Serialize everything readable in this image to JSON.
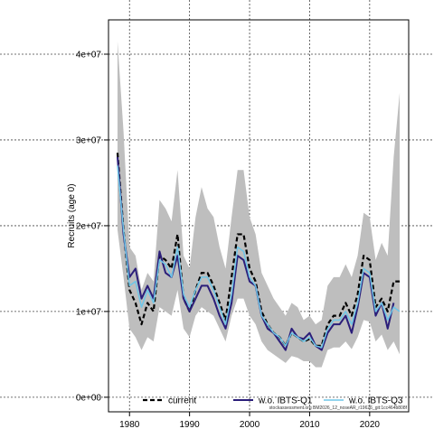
{
  "chart_data": {
    "type": "line",
    "title": "",
    "xlabel": "",
    "ylabel": "Recruits (age 0)",
    "xlim": [
      1976.5,
      2026.5
    ],
    "ylim": [
      -1700000,
      44000000
    ],
    "grid": true,
    "x_ticks": [
      1980,
      1990,
      2000,
      2010,
      2020
    ],
    "y_ticks": [
      0,
      10000000,
      20000000,
      30000000,
      40000000
    ],
    "y_tick_labels": [
      "0e+00",
      "1e+07",
      "2e+07",
      "3e+07",
      "4e+07"
    ],
    "legend_position": "bottom",
    "caption": "stockassessment.org BM2026_12_noseAR_r19626_git:1cc464b808f",
    "x": [
      1978,
      1979,
      1980,
      1981,
      1982,
      1983,
      1984,
      1985,
      1986,
      1987,
      1988,
      1989,
      1990,
      1991,
      1992,
      1993,
      1994,
      1995,
      1996,
      1997,
      1998,
      1999,
      2000,
      2001,
      2002,
      2003,
      2004,
      2005,
      2006,
      2007,
      2008,
      2009,
      2010,
      2011,
      2012,
      2013,
      2014,
      2015,
      2016,
      2017,
      2018,
      2019,
      2020,
      2021,
      2022,
      2023,
      2024,
      2025
    ],
    "band": {
      "color": "#bebebe",
      "upper": [
        41500000,
        31000000,
        17500000,
        16500000,
        12500000,
        14500000,
        13500000,
        23000000,
        22000000,
        20500000,
        26500000,
        16500000,
        15000000,
        21000000,
        24500000,
        22000000,
        21000000,
        17500000,
        15000000,
        21000000,
        26500000,
        26500000,
        21000000,
        19000000,
        14500000,
        13000000,
        11500000,
        10500000,
        9500000,
        11000000,
        10500000,
        9000000,
        9500000,
        8500000,
        9000000,
        13000000,
        14000000,
        14000000,
        15500000,
        14000000,
        16500000,
        21500000,
        21000000,
        16000000,
        18000000,
        16500000,
        28000000,
        35500000
      ],
      "lower": [
        19500000,
        14000000,
        8000000,
        7000000,
        5500000,
        7000000,
        6500000,
        10500000,
        10000000,
        9500000,
        12500000,
        8000000,
        7000000,
        9500000,
        10500000,
        10000000,
        9500000,
        8000000,
        6500000,
        9500000,
        11500000,
        11500000,
        9500000,
        8500000,
        6500000,
        5500000,
        5000000,
        4500000,
        4000000,
        4800000,
        4600000,
        4200000,
        4200000,
        3500000,
        3500000,
        5500000,
        5800000,
        5800000,
        6500000,
        5600000,
        7000000,
        9000000,
        8800000,
        6500000,
        7300000,
        5500000,
        6500000,
        5000000
      ]
    },
    "series": [
      {
        "name": "current",
        "color": "#000000",
        "dash": "5,3",
        "width": 2.2,
        "values": [
          28500000,
          19500000,
          12500000,
          11000000,
          8500000,
          11000000,
          10000000,
          16500000,
          16000000,
          15000000,
          19000000,
          11500000,
          10000000,
          12500000,
          14500000,
          14500000,
          13000000,
          11000000,
          9000000,
          14000000,
          19000000,
          19000000,
          15000000,
          13500000,
          10000000,
          8500000,
          7500000,
          7000000,
          6000000,
          7500000,
          7000000,
          6500000,
          6800000,
          6000000,
          6000000,
          8500000,
          9500000,
          9500000,
          11000000,
          9500000,
          12000000,
          16500000,
          16000000,
          10500000,
          11500000,
          10000000,
          13500000,
          13500000
        ]
      },
      {
        "name": "w.o. IBTS-Q1",
        "color": "#2b1e7a",
        "dash": "",
        "width": 2.0,
        "values": [
          28000000,
          19000000,
          14000000,
          15000000,
          11500000,
          13000000,
          11500000,
          17000000,
          14500000,
          14000000,
          16500000,
          11500000,
          10000000,
          11500000,
          13000000,
          13000000,
          11500000,
          9500000,
          8000000,
          11000000,
          16500000,
          16000000,
          13500000,
          13000000,
          9500000,
          8000000,
          7500000,
          6500000,
          5500000,
          8000000,
          7000000,
          6800000,
          7500000,
          6000000,
          5500000,
          7500000,
          8500000,
          8500000,
          9500000,
          7500000,
          10500000,
          14500000,
          14000000,
          9500000,
          11000000,
          8000000,
          11000000,
          null
        ]
      },
      {
        "name": "w.o. IBTS-Q3",
        "color": "#6ec6e8",
        "dash": "",
        "width": 1.5,
        "values": [
          27000000,
          19500000,
          13000000,
          13500000,
          10500000,
          12500000,
          11000000,
          16000000,
          15500000,
          14000000,
          17500000,
          12000000,
          10500000,
          12500000,
          14000000,
          14000000,
          12500000,
          10500000,
          8500000,
          12000000,
          17500000,
          17000000,
          14000000,
          13000000,
          9500000,
          8500000,
          7500000,
          7000000,
          6000000,
          7500000,
          7000000,
          6500000,
          7000000,
          6000000,
          5800000,
          8000000,
          9000000,
          9000000,
          10000000,
          8500000,
          11000000,
          15000000,
          14500000,
          10000000,
          11000000,
          9000000,
          10500000,
          10000000
        ]
      }
    ]
  }
}
